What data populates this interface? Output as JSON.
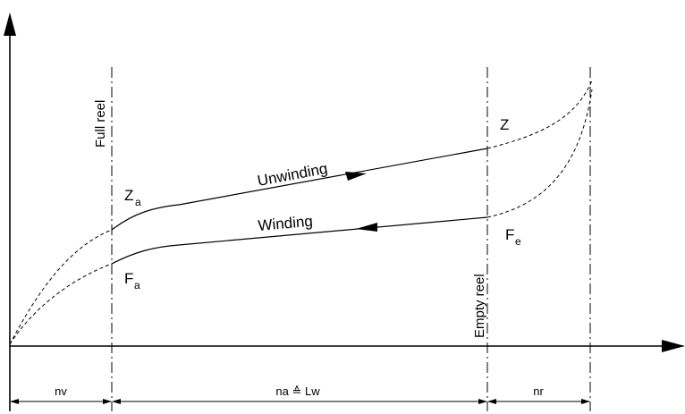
{
  "curves": {
    "upper_label": "Unwinding",
    "lower_label": "Winding"
  },
  "points": {
    "za": {
      "main": "Z",
      "sub": "a"
    },
    "z": {
      "main": "Z"
    },
    "fa": {
      "main": "F",
      "sub": "a"
    },
    "fe": {
      "main": "F",
      "sub": "e"
    }
  },
  "markers": {
    "full_reel": "Full reel",
    "empty_reel": "Empty reel"
  },
  "dimensions": {
    "left": "nv",
    "middle": "na ≙ Lw",
    "right": "nr"
  }
}
